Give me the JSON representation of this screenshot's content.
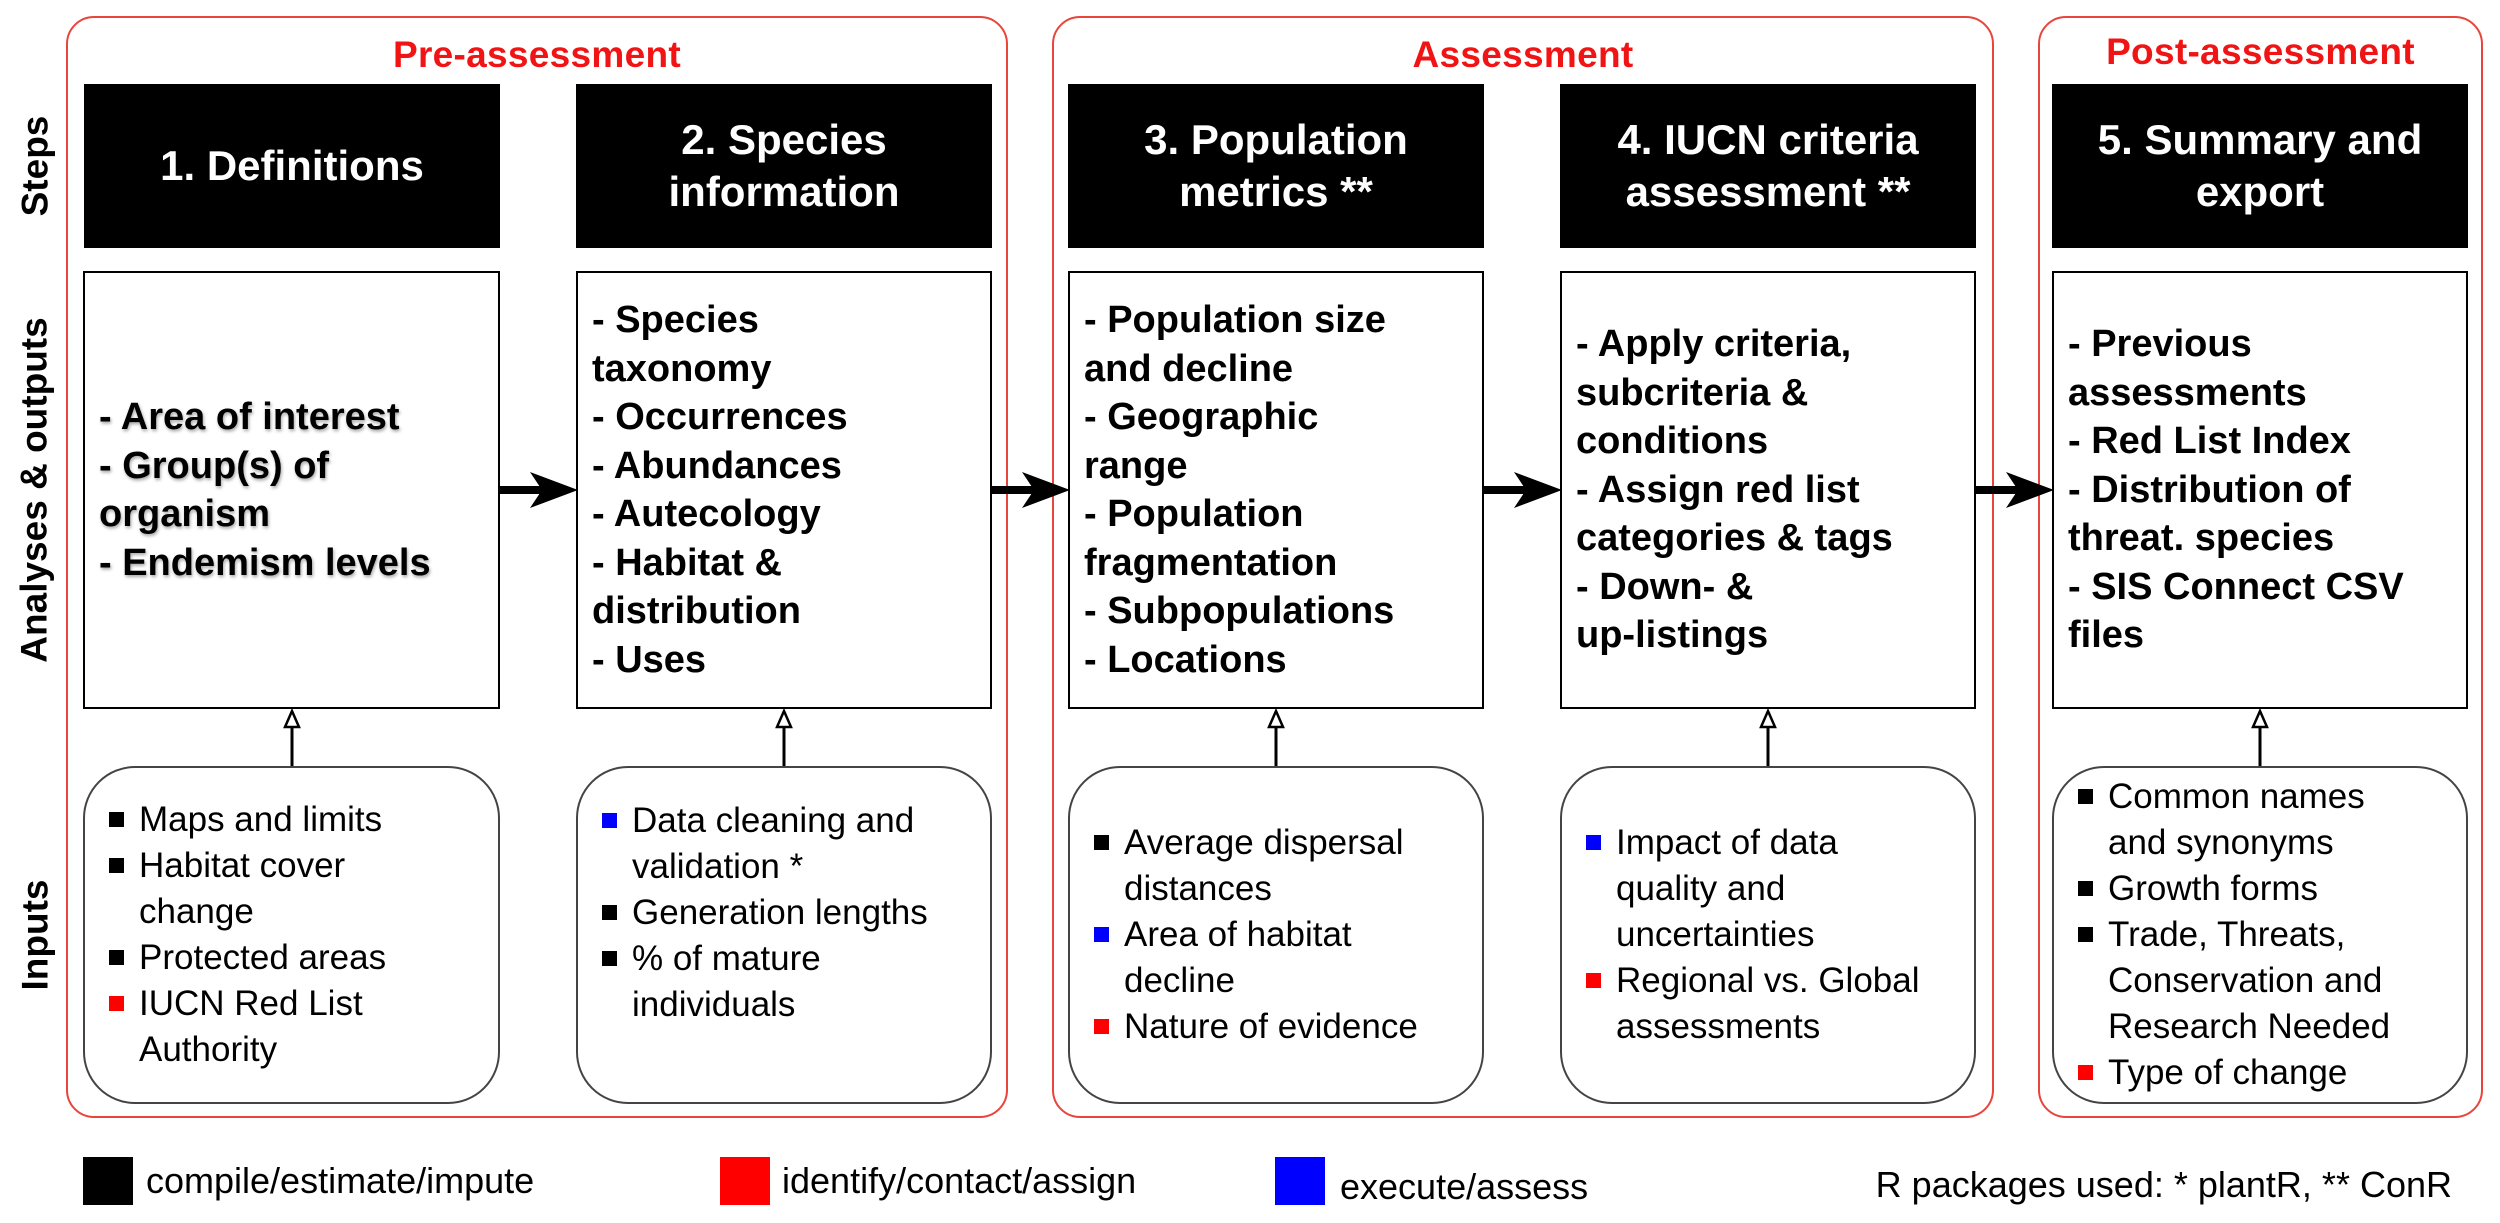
{
  "row_labels": [
    "Steps",
    "Analyses & outputs",
    "Inputs"
  ],
  "phases": [
    {
      "title": "Pre-assessment"
    },
    {
      "title": "Assessment"
    },
    {
      "title": "Post-assessment"
    }
  ],
  "steps": [
    {
      "title": "1.  Definitions",
      "outputs": [
        "- Area of interest",
        "- Group(s) of\n organism",
        "- Endemism levels"
      ],
      "inputs": [
        {
          "color": "black",
          "text": "Maps and limits"
        },
        {
          "color": "black",
          "text": "Habitat cover\nchange"
        },
        {
          "color": "black",
          "text": "Protected areas"
        },
        {
          "color": "red",
          "text": "IUCN Red List\nAuthority"
        }
      ]
    },
    {
      "title": "2. Species\ninformation",
      "outputs": [
        "- Species\n taxonomy",
        "- Occurrences",
        "- Abundances",
        "- Autecology",
        "- Habitat &\n distribution",
        "- Uses"
      ],
      "inputs": [
        {
          "color": "blue",
          "text": "Data cleaning and\nvalidation *"
        },
        {
          "color": "black",
          "text": "Generation lengths"
        },
        {
          "color": "black",
          "text": "% of mature\nindividuals"
        }
      ]
    },
    {
      "title": "3. Population\nmetrics **",
      "outputs": [
        "- Population size\n and decline",
        "- Geographic\n range",
        "- Population\n fragmentation",
        "- Subpopulations",
        "- Locations"
      ],
      "inputs": [
        {
          "color": "black",
          "text": "Average dispersal\ndistances"
        },
        {
          "color": "blue",
          "text": "Area of habitat\ndecline"
        },
        {
          "color": "red",
          "text": "Nature of evidence"
        }
      ]
    },
    {
      "title": "4. IUCN criteria\nassessment **",
      "outputs": [
        "- Apply criteria,\n subcriteria &\n conditions",
        "- Assign red list\n categories & tags",
        "- Down- &\n up-listings"
      ],
      "inputs": [
        {
          "color": "blue",
          "text": "Impact of data\nquality and\nuncertainties"
        },
        {
          "color": "red",
          "text": "Regional vs. Global\nassessments"
        }
      ]
    },
    {
      "title": "5. Summary and\nexport",
      "outputs": [
        "- Previous\n assessments",
        "- Red List Index",
        "- Distribution of\n threat. species",
        "- SIS Connect CSV\n files"
      ],
      "inputs": [
        {
          "color": "black",
          "text": "Common names\nand synonyms"
        },
        {
          "color": "black",
          "text": "Growth forms"
        },
        {
          "color": "black",
          "text": "Trade, Threats,\nConservation and\nResearch Needed"
        },
        {
          "color": "red",
          "text": "Type of change"
        }
      ]
    }
  ],
  "legend": [
    {
      "color": "#000000",
      "label": "compile/estimate/impute"
    },
    {
      "color": "#ff0000",
      "label": "identify/contact/assign"
    },
    {
      "color": "#0000ff",
      "label": "execute/assess"
    }
  ],
  "footnote": "R packages used: * plantR, ** ConR",
  "colors": {
    "phase_border": "#e8453c",
    "phase_title": "#f01414",
    "black": "#000000",
    "red": "#ff0000",
    "blue": "#0000ff"
  }
}
